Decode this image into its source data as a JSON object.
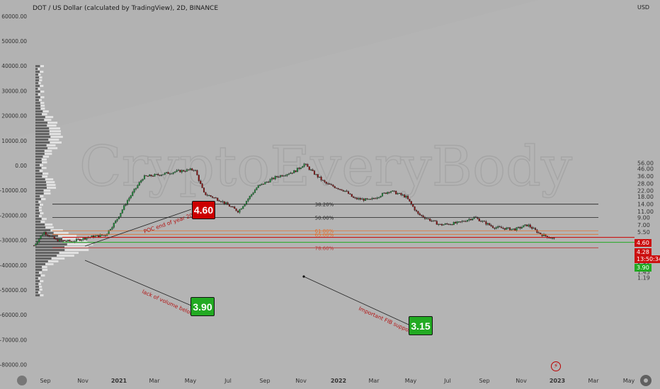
{
  "title": "DOT / US Dollar (calculated by TradingView), 2D, BINANCE",
  "currency_label": "USD",
  "watermark": "CryptoEveryBody",
  "icons": {
    "settings": "gear-icon",
    "logo": "tradingview-logo-icon",
    "event": "lightning-icon"
  },
  "colors": {
    "background": "#b2b2b2",
    "red": "#cc0000",
    "green": "#22aa22",
    "fib_orange": "#e07030",
    "fib_black": "#222222"
  },
  "chart_data": {
    "type": "candlestick",
    "left_axis": {
      "label": "Volume profile",
      "ticks": [
        "60000.00",
        "50000.00",
        "40000.00",
        "30000.00",
        "20000.00",
        "10000.00",
        "0.00",
        "-10000.00",
        "-20000.00",
        "-30000.00",
        "-40000.00",
        "-50000.00",
        "-60000.00",
        "-70000.00",
        "-80000.00"
      ]
    },
    "right_axis": {
      "scale": "log",
      "ticks": [
        "56.00",
        "46.00",
        "36.00",
        "28.00",
        "22.00",
        "18.00",
        "14.00",
        "11.00",
        "9.00",
        "7.00",
        "5.50",
        "4.60",
        "4.28",
        "3.90",
        "2.90",
        "2.30",
        "1.80",
        "1.45",
        "1.19"
      ]
    },
    "x_ticks": [
      "Sep",
      "Nov",
      "2021",
      "Mar",
      "May",
      "Jul",
      "Sep",
      "Nov",
      "2022",
      "Mar",
      "May",
      "Jul",
      "Sep",
      "Nov",
      "2023",
      "Mar",
      "May"
    ],
    "price_path": [
      {
        "date": "2020-08-20",
        "price": 3.5
      },
      {
        "date": "2020-09-05",
        "price": 5.5
      },
      {
        "date": "2020-09-25",
        "price": 4.2
      },
      {
        "date": "2020-10-20",
        "price": 4.0
      },
      {
        "date": "2020-11-15",
        "price": 4.6
      },
      {
        "date": "2020-12-15",
        "price": 5.0
      },
      {
        "date": "2021-01-01",
        "price": 8.0
      },
      {
        "date": "2021-01-20",
        "price": 16.0
      },
      {
        "date": "2021-02-15",
        "price": 35.0
      },
      {
        "date": "2021-03-15",
        "price": 38.0
      },
      {
        "date": "2021-04-10",
        "price": 42.0
      },
      {
        "date": "2021-05-10",
        "price": 45.0
      },
      {
        "date": "2021-05-25",
        "price": 20.0
      },
      {
        "date": "2021-06-20",
        "price": 16.0
      },
      {
        "date": "2021-07-20",
        "price": 11.0
      },
      {
        "date": "2021-08-20",
        "price": 25.0
      },
      {
        "date": "2021-09-20",
        "price": 35.0
      },
      {
        "date": "2021-10-20",
        "price": 42.0
      },
      {
        "date": "2021-11-05",
        "price": 54.0
      },
      {
        "date": "2021-11-20",
        "price": 40.0
      },
      {
        "date": "2021-12-10",
        "price": 28.0
      },
      {
        "date": "2022-01-10",
        "price": 22.0
      },
      {
        "date": "2022-01-25",
        "price": 17.0
      },
      {
        "date": "2022-02-20",
        "price": 16.0
      },
      {
        "date": "2022-03-25",
        "price": 22.0
      },
      {
        "date": "2022-04-20",
        "price": 18.0
      },
      {
        "date": "2022-05-10",
        "price": 10.0
      },
      {
        "date": "2022-06-15",
        "price": 7.0
      },
      {
        "date": "2022-07-15",
        "price": 7.5
      },
      {
        "date": "2022-08-10",
        "price": 9.0
      },
      {
        "date": "2022-09-10",
        "price": 6.5
      },
      {
        "date": "2022-10-15",
        "price": 6.0
      },
      {
        "date": "2022-11-05",
        "price": 7.0
      },
      {
        "date": "2022-11-25",
        "price": 5.2
      },
      {
        "date": "2022-12-20",
        "price": 4.3
      }
    ],
    "fib_levels": [
      {
        "label": "38.20%",
        "price": 14.0,
        "color": "black"
      },
      {
        "label": "50.00%",
        "price": 9.0,
        "color": "black"
      },
      {
        "label": "61.80%",
        "price": 5.75,
        "color": "orange"
      },
      {
        "label": "65.00%",
        "price": 5.1,
        "color": "orange"
      },
      {
        "label": "78.60%",
        "price": 3.25,
        "color": "red"
      }
    ],
    "horizontal_levels": [
      {
        "price": 4.6,
        "color": "red"
      },
      {
        "price": 3.9,
        "color": "green"
      }
    ],
    "annotations": [
      {
        "text": "POC end of year 2020",
        "target": "4.60"
      },
      {
        "text": "lack of volume below",
        "target": "3.90"
      },
      {
        "text": "Important FIB support",
        "target": "3.15"
      }
    ],
    "badges": [
      {
        "value": "4.60",
        "color": "red"
      },
      {
        "value": "3.90",
        "color": "green"
      },
      {
        "value": "3.15",
        "color": "green"
      }
    ],
    "price_tags": [
      {
        "value": "4.60",
        "color": "red"
      },
      {
        "value": "4.28",
        "color": "red"
      },
      {
        "value": "13:50:34",
        "color": "red"
      },
      {
        "value": "3.90",
        "color": "green"
      }
    ]
  }
}
